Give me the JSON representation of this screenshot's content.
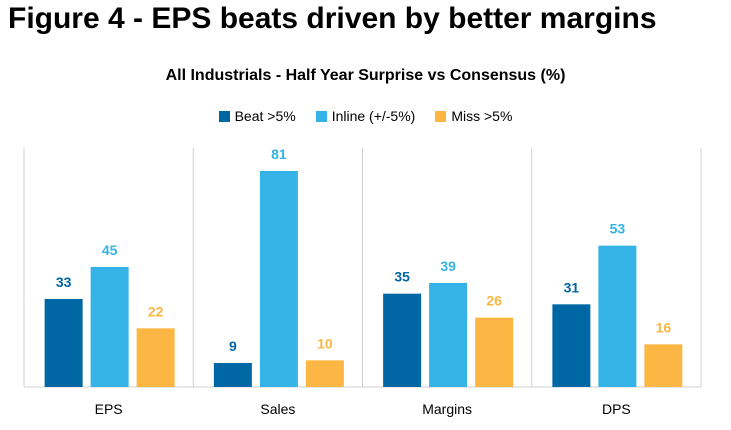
{
  "figure_title": "Figure 4 - EPS beats driven by better margins",
  "colors": {
    "beat": "#0067a5",
    "inline": "#35b3e6",
    "miss": "#fbb643",
    "grid": "#d0d0d0"
  },
  "chart_data": {
    "type": "bar",
    "title": "All Industrials - Half Year Surprise vs Consensus (%)",
    "categories": [
      "EPS",
      "Sales",
      "Margins",
      "DPS"
    ],
    "series": [
      {
        "name": "Beat >5%",
        "values": [
          33,
          9,
          35,
          31
        ]
      },
      {
        "name": "Inline (+/-5%)",
        "values": [
          45,
          81,
          39,
          53
        ]
      },
      {
        "name": "Miss >5%",
        "values": [
          22,
          10,
          26,
          16
        ]
      }
    ],
    "ylim": [
      0,
      81
    ],
    "legend": "top-center",
    "grid": false
  }
}
